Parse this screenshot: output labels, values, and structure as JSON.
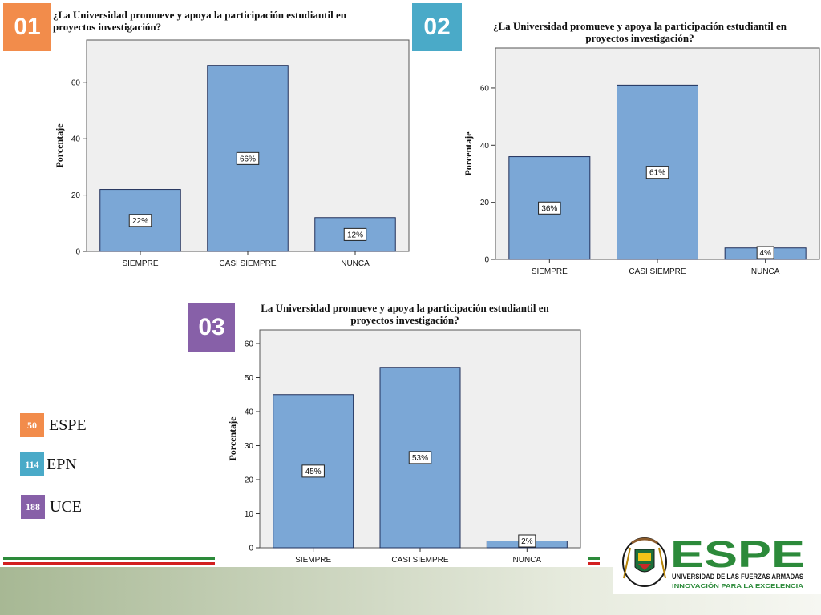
{
  "colors": {
    "badge1": "#f28c4b",
    "badge2": "#4aaac8",
    "badge3": "#8760a8",
    "bar": "#7ba7d6",
    "bar_stroke": "#1f2f5a",
    "plot_bg": "#efefef",
    "brand_green": "#2c8a3a"
  },
  "badges": {
    "b1": "01",
    "b2": "02",
    "b3": "03"
  },
  "legend": [
    {
      "count": "50",
      "name": "ESPE"
    },
    {
      "count": "114",
      "name": "EPN"
    },
    {
      "count": "188",
      "name": "UCE"
    }
  ],
  "logo": {
    "name": "ESPE",
    "subtitle": "UNIVERSIDAD DE LAS FUERZAS ARMADAS",
    "tagline": "INNOVACIÓN PARA LA EXCELENCIA"
  },
  "chart_data": [
    {
      "type": "bar",
      "title_line1": "¿La Universidad promueve y apoya la  participación estudiantil en",
      "title_line2": "proyectos investigación?",
      "ylabel": "Porcentaje",
      "categories": [
        "SIEMPRE",
        "CASI SIEMPRE",
        "NUNCA"
      ],
      "values": [
        22,
        66,
        12
      ],
      "data_labels": [
        "22%",
        "66%",
        "12%"
      ],
      "ylim": [
        0,
        75
      ],
      "yticks": [
        0,
        20,
        40,
        60
      ]
    },
    {
      "type": "bar",
      "title_line1": "¿La Universidad promueve y apoya la  participación estudiantil en",
      "title_line2": "proyectos investigación?",
      "ylabel": "Porcentaje",
      "categories": [
        "SIEMPRE",
        "CASI SIEMPRE",
        "NUNCA"
      ],
      "values": [
        36,
        61,
        4
      ],
      "data_labels": [
        "36%",
        "61%",
        "4%"
      ],
      "ylim": [
        0,
        74
      ],
      "yticks": [
        0,
        20,
        40,
        60
      ]
    },
    {
      "type": "bar",
      "title_line1": "La Universidad promueve y apoya la  participación estudiantil en",
      "title_line2": "proyectos investigación?",
      "ylabel": "Porcentaje",
      "categories": [
        "SIEMPRE",
        "CASI SIEMPRE",
        "NUNCA"
      ],
      "values": [
        45,
        53,
        2
      ],
      "data_labels": [
        "45%",
        "53%",
        "2%"
      ],
      "ylim": [
        0,
        64
      ],
      "yticks": [
        0,
        10,
        20,
        30,
        40,
        50,
        60
      ]
    }
  ]
}
